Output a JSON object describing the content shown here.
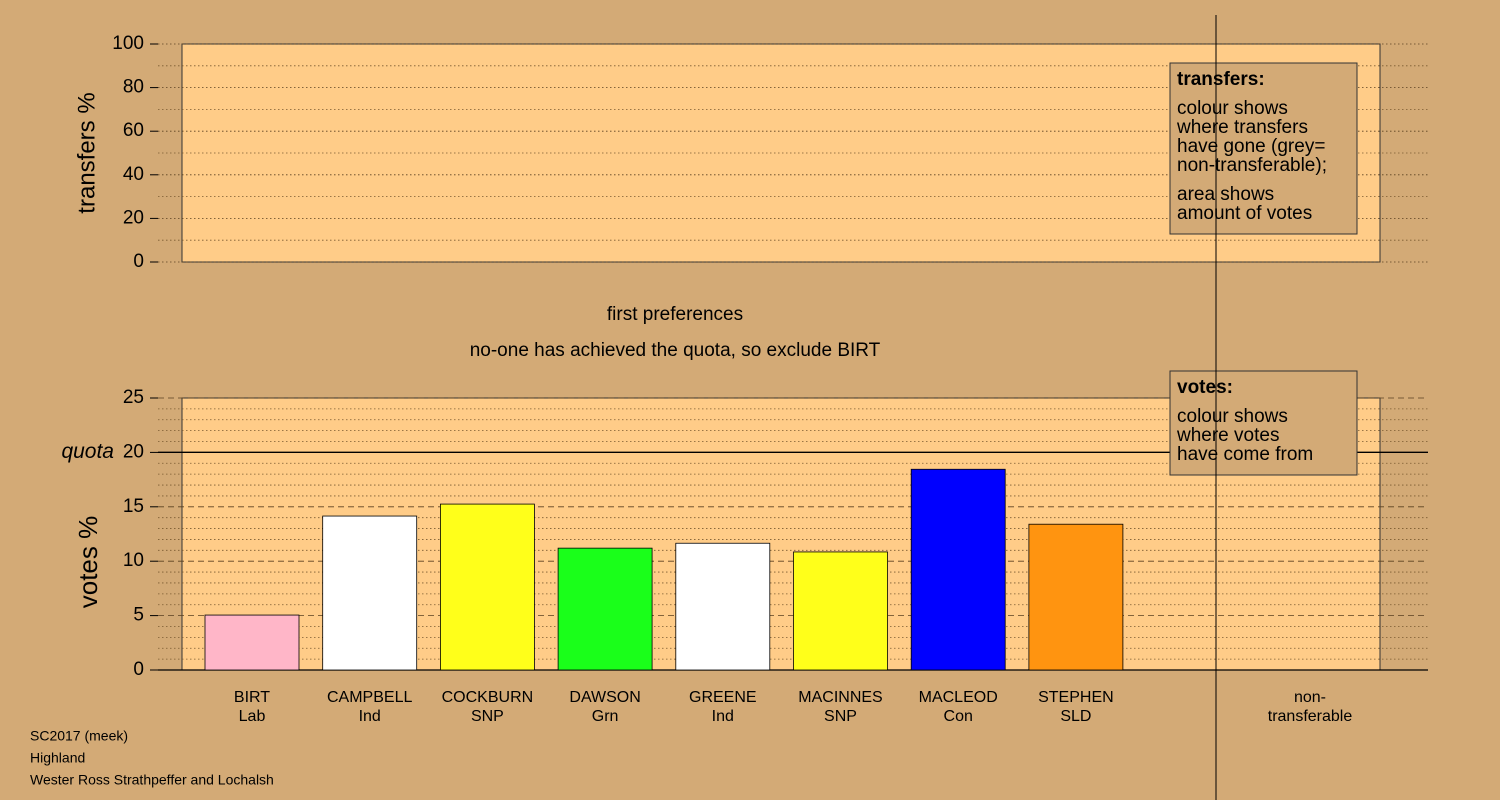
{
  "chart_data": [
    {
      "type": "bar",
      "ylabel": "transfers %",
      "ylim": [
        0,
        100
      ],
      "yticks": [
        0,
        20,
        40,
        60,
        80,
        100
      ],
      "minor_yticks": [
        10,
        30,
        50,
        70,
        90
      ],
      "grid_style": "dotted",
      "legend": "top-right",
      "legend_title": "transfers:",
      "legend_text": [
        [
          "colour shows",
          "where transfers",
          "have gone (grey=",
          "non-transferable);"
        ],
        [
          "area shows",
          "amount of votes"
        ]
      ]
    },
    {
      "type": "bar",
      "title": "first preferences",
      "subtitle": "no-one has achieved the quota, so exclude BIRT",
      "ylabel": "votes %",
      "ylim": [
        0,
        25
      ],
      "yticks": [
        0,
        5,
        10,
        15,
        20,
        25
      ],
      "minor_yticks": [
        1,
        2,
        3,
        4,
        6,
        7,
        8,
        9,
        11,
        12,
        13,
        14,
        16,
        17,
        18,
        19,
        21,
        22,
        23,
        24
      ],
      "grid_style": "dashed",
      "quota": {
        "value": 20,
        "label": "quota"
      },
      "legend": "top-right",
      "legend_title": "votes:",
      "legend_text": [
        [
          "colour shows",
          "where votes",
          "have come from"
        ]
      ],
      "categories": [
        [
          "BIRT",
          "Lab"
        ],
        [
          "CAMPBELL",
          "Ind"
        ],
        [
          "COCKBURN",
          "SNP"
        ],
        [
          "DAWSON",
          "Grn"
        ],
        [
          "GREENE",
          "Ind"
        ],
        [
          "MACINNES",
          "SNP"
        ],
        [
          "MACLEOD",
          "Con"
        ],
        [
          "STEPHEN",
          "SLD"
        ],
        [
          "non-",
          "transferable"
        ]
      ],
      "values": [
        5.05,
        14.15,
        15.25,
        11.2,
        11.65,
        10.85,
        18.45,
        13.4,
        0
      ],
      "colors": [
        "#ffb6c8",
        "#ffffff",
        "#ffff1a",
        "#1aff1a",
        "#ffffff",
        "#ffff1a",
        "#0000ff",
        "#ff9410",
        "#bebebe"
      ]
    }
  ],
  "footer": [
    "SC2017 (meek)",
    "Highland",
    "Wester Ross Strathpeffer and Lochalsh"
  ]
}
